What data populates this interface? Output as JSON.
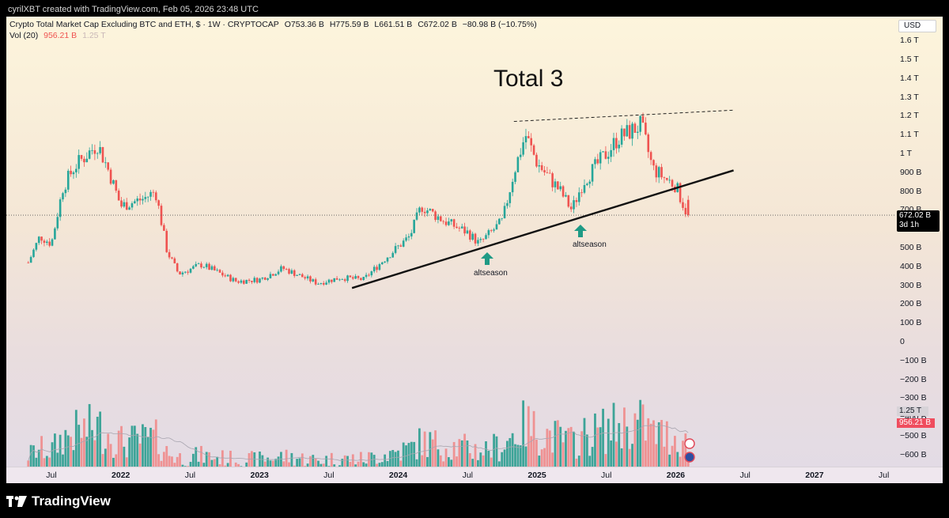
{
  "header": {
    "caption": "cyrilXBT created with TradingView.com, Feb 05, 2026 23:48 UTC"
  },
  "legend": {
    "symbol": "Crypto Total Market Cap Excluding BTC and ETH, $ · 1W · CRYPTOCAP",
    "open": "O753.36 B",
    "high": "H775.59 B",
    "low": "L661.51 B",
    "close": "C672.02 B",
    "change": "−80.98 B (−10.75%)",
    "vol_label": "Vol (20)",
    "vol_value": "956.21 B",
    "vol_ma": "1.25 T"
  },
  "axis": {
    "currency_button": "USD",
    "price_tag_value": "672.02 B",
    "price_tag_countdown": "3d 1h",
    "vol_tag_ma": "1.25 T",
    "vol_tag_value": "956.21 B",
    "y_ticks": [
      "1.6 T",
      "1.5 T",
      "1.4 T",
      "1.3 T",
      "1.2 T",
      "1.1 T",
      "1 T",
      "900 B",
      "800 B",
      "700 B",
      "600 B",
      "500 B",
      "400 B",
      "300 B",
      "200 B",
      "100 B",
      "0",
      "−100 B",
      "−200 B",
      "−300 B",
      "−400 B",
      "−500 B",
      "−600 B"
    ]
  },
  "xaxis": {
    "ticks": [
      {
        "label": "Jul",
        "year": false
      },
      {
        "label": "2022",
        "year": true
      },
      {
        "label": "Jul",
        "year": false
      },
      {
        "label": "2023",
        "year": true
      },
      {
        "label": "Jul",
        "year": false
      },
      {
        "label": "2024",
        "year": true
      },
      {
        "label": "Jul",
        "year": false
      },
      {
        "label": "2025",
        "year": true
      },
      {
        "label": "Jul",
        "year": false
      },
      {
        "label": "2026",
        "year": true
      },
      {
        "label": "Jul",
        "year": false
      },
      {
        "label": "2027",
        "year": true
      },
      {
        "label": "Jul",
        "year": false
      }
    ]
  },
  "annotations": {
    "title": "Total 3",
    "markers": [
      "altseason",
      "altseason"
    ]
  },
  "footer": {
    "brand": "TradingView"
  },
  "colors": {
    "up": "#26a69a",
    "down": "#ef5350",
    "vol_up": "#2a9d8f",
    "vol_down": "#ef8a8a",
    "arrow": "#1f9a85"
  },
  "chart_data": {
    "type": "candlestick",
    "title": "Total 3",
    "timeframe": "1W",
    "y_unit": "USD",
    "ylim": [
      -650000000000,
      1650000000000
    ],
    "x_range": [
      "2021-05",
      "2027-10"
    ],
    "price_anchors": [
      {
        "date": "2021-05",
        "value": 420000000000
      },
      {
        "date": "2021-06",
        "value": 560000000000
      },
      {
        "date": "2021-07",
        "value": 520000000000
      },
      {
        "date": "2021-08",
        "value": 820000000000
      },
      {
        "date": "2021-09",
        "value": 930000000000
      },
      {
        "date": "2021-11",
        "value": 1050000000000
      },
      {
        "date": "2021-12",
        "value": 900000000000
      },
      {
        "date": "2022-01",
        "value": 720000000000
      },
      {
        "date": "2022-03",
        "value": 760000000000
      },
      {
        "date": "2022-04",
        "value": 800000000000
      },
      {
        "date": "2022-05",
        "value": 480000000000
      },
      {
        "date": "2022-06",
        "value": 360000000000
      },
      {
        "date": "2022-08",
        "value": 410000000000
      },
      {
        "date": "2022-11",
        "value": 320000000000
      },
      {
        "date": "2023-01",
        "value": 330000000000
      },
      {
        "date": "2023-03",
        "value": 390000000000
      },
      {
        "date": "2023-06",
        "value": 310000000000
      },
      {
        "date": "2023-08",
        "value": 340000000000
      },
      {
        "date": "2023-10",
        "value": 330000000000
      },
      {
        "date": "2023-12",
        "value": 450000000000
      },
      {
        "date": "2024-02",
        "value": 560000000000
      },
      {
        "date": "2024-03",
        "value": 720000000000
      },
      {
        "date": "2024-05",
        "value": 640000000000
      },
      {
        "date": "2024-07",
        "value": 580000000000
      },
      {
        "date": "2024-08",
        "value": 520000000000
      },
      {
        "date": "2024-10",
        "value": 640000000000
      },
      {
        "date": "2024-11",
        "value": 900000000000
      },
      {
        "date": "2024-12",
        "value": 1100000000000
      },
      {
        "date": "2025-01",
        "value": 950000000000
      },
      {
        "date": "2025-03",
        "value": 800000000000
      },
      {
        "date": "2025-04",
        "value": 700000000000
      },
      {
        "date": "2025-05",
        "value": 850000000000
      },
      {
        "date": "2025-07",
        "value": 1000000000000
      },
      {
        "date": "2025-08",
        "value": 1080000000000
      },
      {
        "date": "2025-10",
        "value": 1150000000000
      },
      {
        "date": "2025-11",
        "value": 920000000000
      },
      {
        "date": "2025-12",
        "value": 870000000000
      },
      {
        "date": "2026-01",
        "value": 830000000000
      },
      {
        "date": "2026-02",
        "value": 672020000000
      }
    ],
    "last_candle": {
      "open": 753360000000,
      "high": 775590000000,
      "low": 661510000000,
      "close": 672020000000
    },
    "volume": {
      "last": 956210000000,
      "ma20": 1250000000000
    },
    "trendlines": [
      {
        "style": "solid",
        "from": {
          "date": "2023-09",
          "value": 285000000000
        },
        "to": {
          "date": "2026-06",
          "value": 910000000000
        }
      },
      {
        "style": "dashed",
        "from": {
          "date": "2024-11",
          "value": 1170000000000
        },
        "to": {
          "date": "2026-06",
          "value": 1230000000000
        }
      }
    ],
    "events": [
      {
        "label": "altseason",
        "date": "2024-08"
      },
      {
        "label": "altseason",
        "date": "2025-04"
      }
    ]
  }
}
